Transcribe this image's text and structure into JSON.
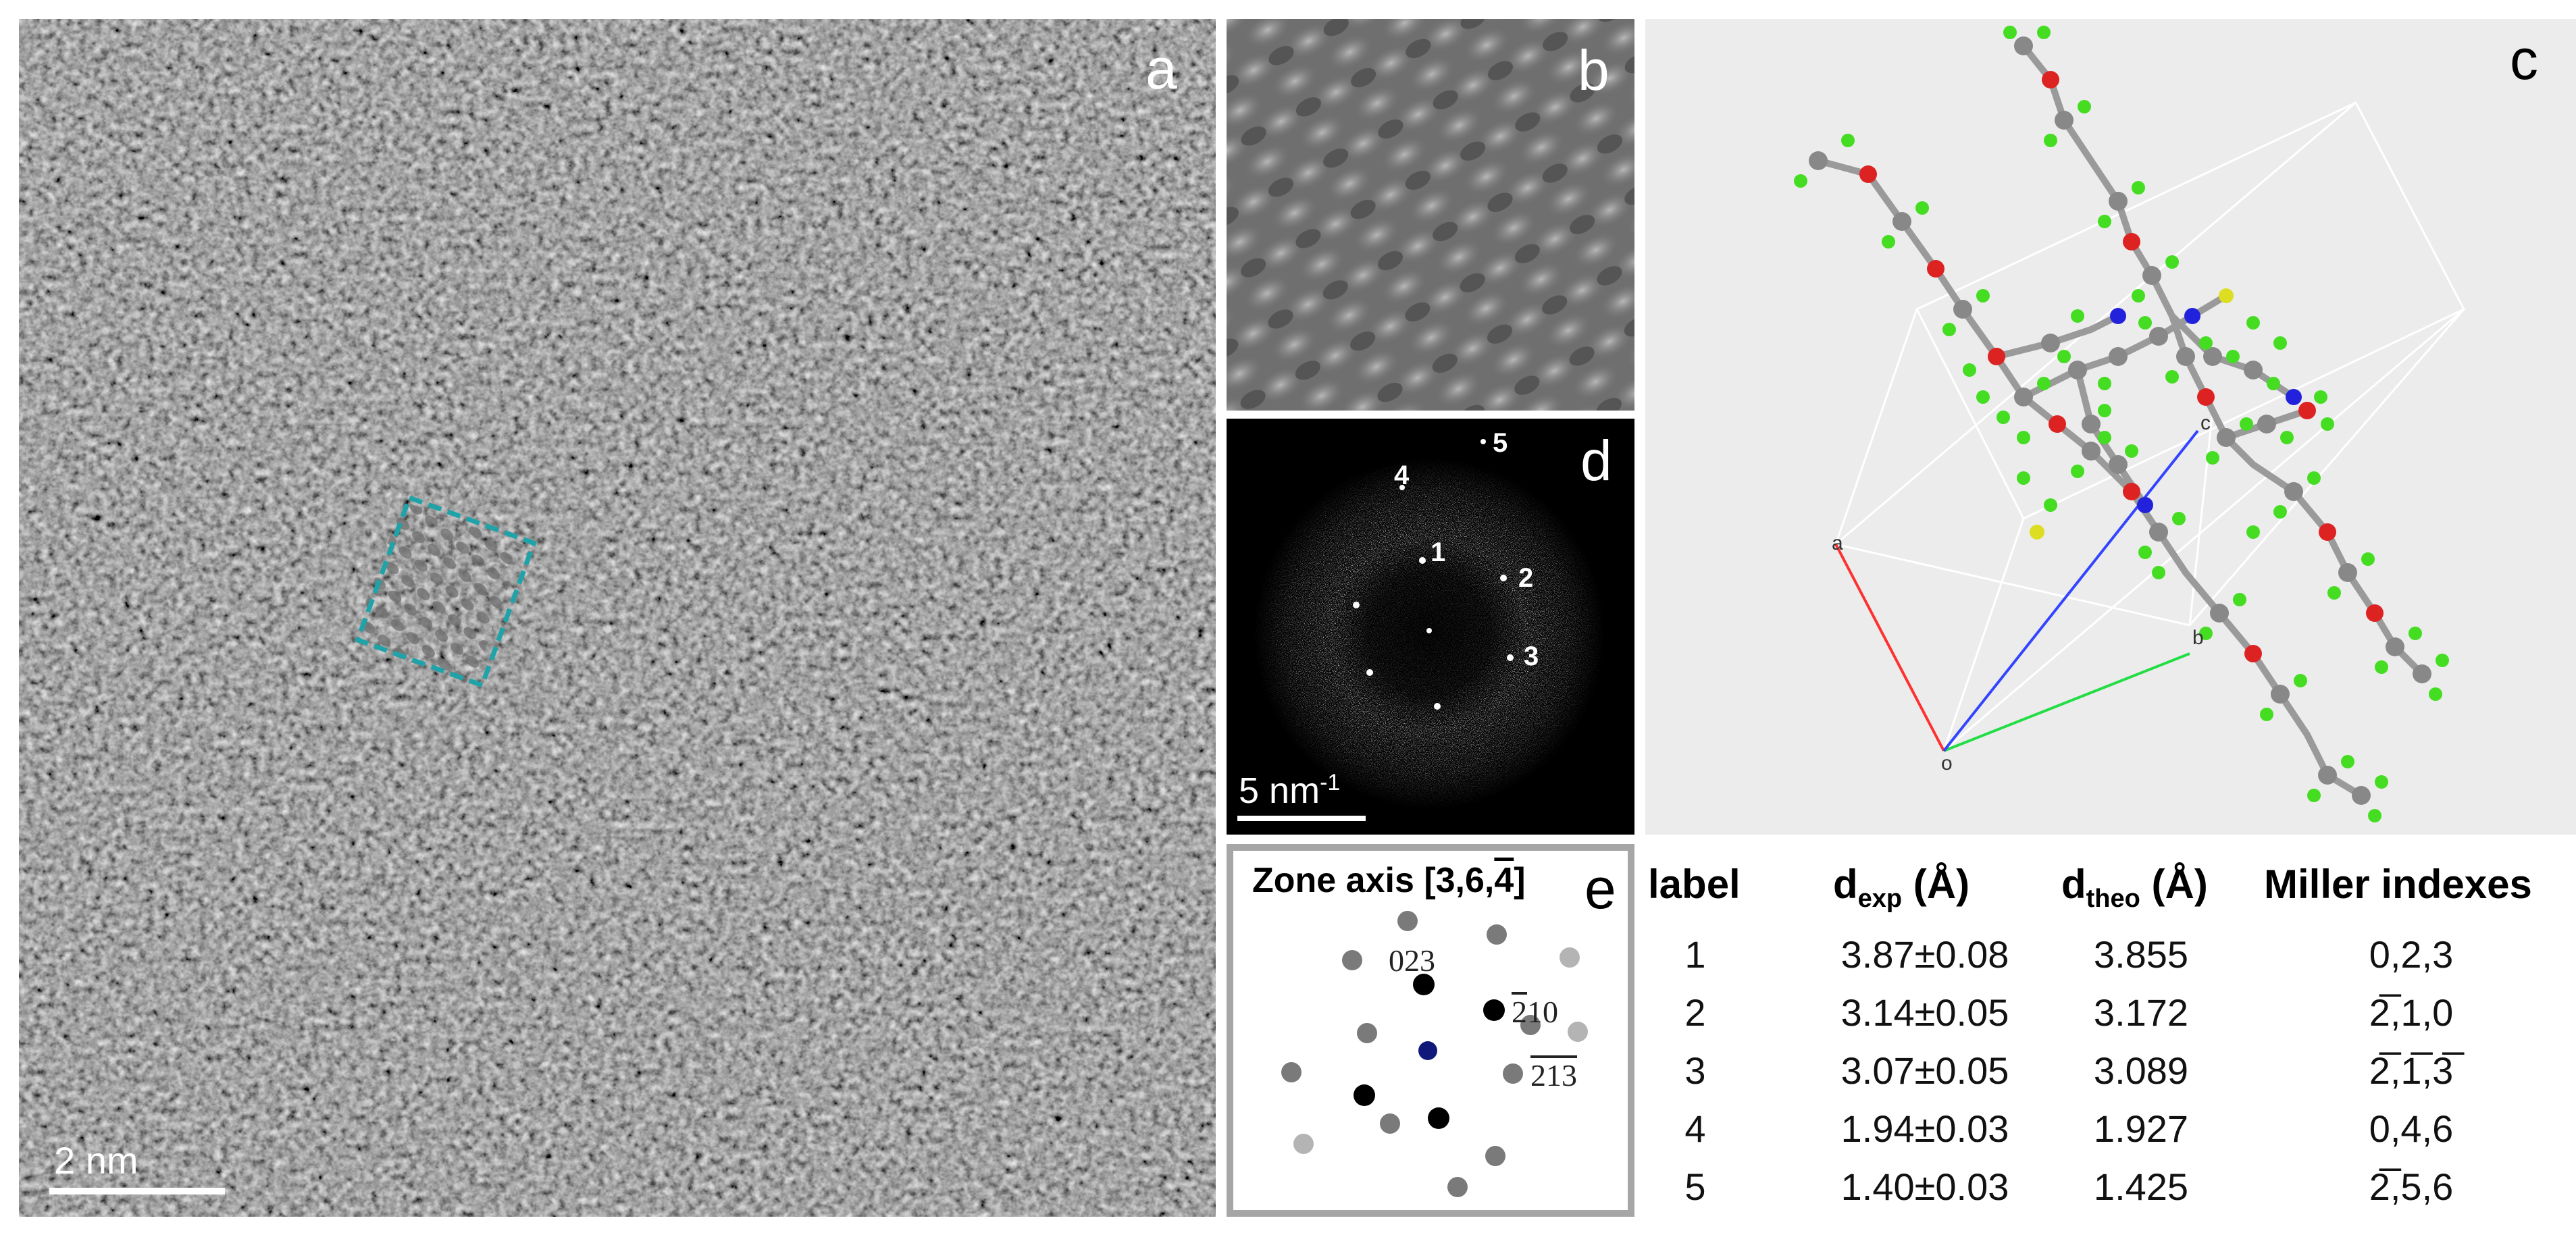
{
  "panel_labels": {
    "a": "a",
    "b": "b",
    "c": "c",
    "d": "d",
    "e": "e"
  },
  "panel_a": {
    "scalebar_label": "2 nm"
  },
  "panel_c": {
    "axis_labels": {
      "a": "a",
      "b": "b",
      "c": "c",
      "o": "o"
    }
  },
  "panel_d": {
    "scalebar_label": "5 nm",
    "scalebar_exp": "-1",
    "spot_labels": [
      "1",
      "2",
      "3",
      "4",
      "5"
    ]
  },
  "panel_e": {
    "title_prefix": "Zone axis [3,6,",
    "title_bar_digit": "4",
    "title_suffix": "]",
    "spot_label_023": "023",
    "spot_label_210": {
      "bar": "2",
      "rest": "10"
    },
    "spot_label_213": {
      "bar": "2",
      "bar2": "1",
      "bar3": "3"
    }
  },
  "table": {
    "headers": {
      "label": "label",
      "dexp": "d",
      "dexp_sub": "exp",
      "dexp_unit": " (Å)",
      "dtheo": "d",
      "dtheo_sub": "theo",
      "dtheo_unit": " (Å)",
      "miller": "Miller indexes"
    },
    "rows": [
      {
        "label": "1",
        "dexp": "3.87±0.08",
        "dtheo": "3.855",
        "miller": "0,2,3"
      },
      {
        "label": "2",
        "dexp": "3.14±0.05",
        "dtheo": "3.172",
        "miller": "2̅,1,0"
      },
      {
        "label": "3",
        "dexp": "3.07±0.05",
        "dtheo": "3.089",
        "miller": "2̅,1̅,3̅"
      },
      {
        "label": "4",
        "dexp": "1.94±0.03",
        "dtheo": "1.927",
        "miller": "0,4,6"
      },
      {
        "label": "5",
        "dexp": "1.40±0.03",
        "dtheo": "1.425",
        "miller": "2̅,5,6"
      }
    ]
  },
  "colors": {
    "roi_box": "#1fa3a8",
    "cell_a": "#ff3030",
    "cell_b": "#22dd44",
    "cell_c": "#3344ff",
    "hydrogen": "#44dd22",
    "carbon": "#888888",
    "oxygen": "#dd2222",
    "nitrogen": "#2222dd",
    "sulfur": "#dddd22"
  }
}
